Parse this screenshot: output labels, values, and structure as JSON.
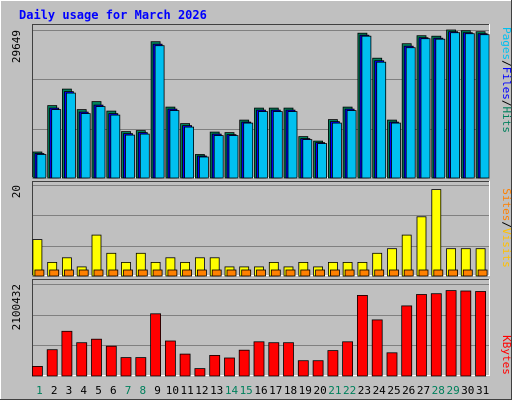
{
  "chart_data": {
    "title": "Daily usage for March 2026",
    "type": "bar",
    "days": [
      "1",
      "2",
      "3",
      "4",
      "5",
      "6",
      "7",
      "8",
      "9",
      "10",
      "11",
      "12",
      "13",
      "14",
      "15",
      "16",
      "17",
      "18",
      "19",
      "20",
      "21",
      "22",
      "23",
      "24",
      "25",
      "26",
      "27",
      "28",
      "29",
      "30",
      "31"
    ],
    "weekend_days": [
      "1",
      "7",
      "8",
      "14",
      "15",
      "21",
      "22",
      "28",
      "29"
    ],
    "panels": {
      "hits": {
        "max_label": "29649",
        "max": 29649,
        "series": [
          {
            "name": "Hits",
            "color": "#00805c",
            "values": [
              5200,
              14500,
              17800,
              13700,
              15300,
              13400,
              9300,
              9500,
              27300,
              14200,
              10900,
              4700,
              9200,
              9100,
              11600,
              14000,
              14000,
              14000,
              8300,
              7400,
              11700,
              14200,
              29000,
              24000,
              11600,
              26900,
              28500,
              28400,
              29649,
              29500,
              29300
            ]
          },
          {
            "name": "Files",
            "color": "#0000ff",
            "values": [
              4900,
              14000,
              17300,
              13200,
              14600,
              12900,
              8900,
              9100,
              26800,
              13800,
              10500,
              4400,
              8800,
              8700,
              11200,
              13600,
              13600,
              13600,
              7900,
              7100,
              11300,
              13800,
              28600,
              23500,
              11200,
              26400,
              28100,
              28000,
              29300,
              29100,
              28900
            ]
          },
          {
            "name": "Pages",
            "color": "#00c0f0",
            "values": [
              4700,
              13700,
              17000,
              12900,
              14300,
              12600,
              8600,
              8800,
              26500,
              13500,
              10200,
              4200,
              8500,
              8500,
              11000,
              13300,
              13300,
              13300,
              7700,
              6900,
              11000,
              13500,
              28400,
              23200,
              11000,
              26100,
              27900,
              27800,
              29100,
              28900,
              28700
            ]
          }
        ]
      },
      "visits": {
        "max_label": "20",
        "max": 20,
        "series": [
          {
            "name": "Visits",
            "color": "#ffff00",
            "values": [
              8,
              3,
              4,
              2,
              9,
              5,
              3,
              5,
              3,
              4,
              3,
              4,
              4,
              2,
              2,
              2,
              3,
              2,
              3,
              2,
              3,
              3,
              3,
              5,
              6,
              9,
              13,
              19,
              6,
              6,
              6
            ]
          },
          {
            "name": "Sites",
            "color": "#ff8000",
            "values": [
              1,
              1,
              1,
              1,
              1,
              1,
              1,
              1,
              1,
              1,
              1,
              1,
              1,
              1,
              1,
              1,
              1,
              1,
              1,
              1,
              1,
              1,
              1,
              1,
              1,
              1,
              1,
              1,
              1,
              1,
              1
            ]
          }
        ]
      },
      "kbytes": {
        "max_label": "2100432",
        "max": 2100432,
        "series": [
          {
            "name": "KBytes",
            "color": "#ff0000",
            "values": [
              220000,
              600000,
              1020000,
              760000,
              840000,
              680000,
              420000,
              420000,
              1420000,
              800000,
              500000,
              170000,
              470000,
              410000,
              590000,
              780000,
              760000,
              760000,
              350000,
              350000,
              580000,
              780000,
              1840000,
              1280000,
              530000,
              1600000,
              1860000,
              1880000,
              1950000,
              1940000,
              1930000
            ]
          }
        ]
      }
    },
    "side_labels": {
      "hits_panel": [
        "Pages",
        "/",
        "Files",
        "/",
        "Hits"
      ],
      "visits_panel": [
        "Sites",
        "/",
        "Visits"
      ],
      "kbytes_panel": [
        "KBytes"
      ]
    },
    "colors": {
      "background": "#c0c0c0",
      "title": "#0000ff",
      "weekend_label": "#00805c",
      "weekday_label": "#000000",
      "gridline": "#808080"
    }
  }
}
